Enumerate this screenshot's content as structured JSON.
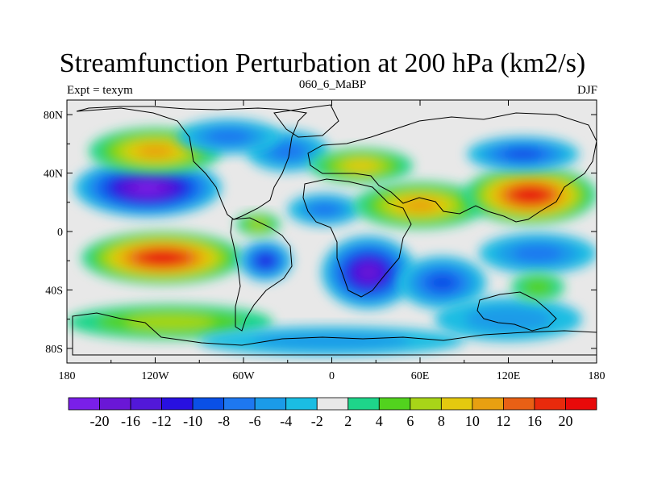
{
  "title": "Streamfunction Perturbation at 200 hPa (km2/s)",
  "left_label": "Expt = texym",
  "center_label": "060_6_MaBP",
  "right_label": "DJF",
  "lat_ticks": [
    {
      "label": "80N",
      "lat": 80
    },
    {
      "label": "40N",
      "lat": 40
    },
    {
      "label": "0",
      "lat": 0
    },
    {
      "label": "40S",
      "lat": -40
    },
    {
      "label": "80S",
      "lat": -80
    }
  ],
  "lon_ticks": [
    {
      "label": "180",
      "lon": -180
    },
    {
      "label": "120W",
      "lon": -120
    },
    {
      "label": "60W",
      "lon": -60
    },
    {
      "label": "0",
      "lon": 0
    },
    {
      "label": "60E",
      "lon": 60
    },
    {
      "label": "120E",
      "lon": 120
    },
    {
      "label": "180",
      "lon": 180
    }
  ],
  "colorbar": {
    "colors": [
      "#7a1fe8",
      "#6a17d6",
      "#5218d9",
      "#2810e0",
      "#0a50e6",
      "#1e78f0",
      "#1b9be8",
      "#1bbde3",
      "#e8e8e8",
      "#1ed58a",
      "#52d31e",
      "#a8d518",
      "#e4c90f",
      "#e8a011",
      "#e86015",
      "#e82a0c",
      "#e80a0a"
    ],
    "labels": [
      "-20",
      "-16",
      "-12",
      "-10",
      "-8",
      "-6",
      "-4",
      "-2",
      "2",
      "4",
      "6",
      "8",
      "10",
      "12",
      "16",
      "20"
    ]
  },
  "map_blobs": [
    {
      "lon": -125,
      "lat": 30,
      "rx": 50,
      "ry": 20,
      "value": -20
    },
    {
      "lon": -120,
      "lat": 55,
      "rx": 45,
      "ry": 16,
      "value": 10
    },
    {
      "lon": -115,
      "lat": -18,
      "rx": 55,
      "ry": 18,
      "value": 20
    },
    {
      "lon": -30,
      "lat": 55,
      "rx": 28,
      "ry": 14,
      "value": -6
    },
    {
      "lon": -70,
      "lat": 65,
      "rx": 35,
      "ry": 12,
      "value": -6
    },
    {
      "lon": -45,
      "lat": -20,
      "rx": 18,
      "ry": 14,
      "value": -10
    },
    {
      "lon": 20,
      "lat": 45,
      "rx": 35,
      "ry": 12,
      "value": 8
    },
    {
      "lon": -5,
      "lat": 15,
      "rx": 25,
      "ry": 11,
      "value": -6
    },
    {
      "lon": 25,
      "lat": -28,
      "rx": 32,
      "ry": 25,
      "value": -16
    },
    {
      "lon": 60,
      "lat": 18,
      "rx": 45,
      "ry": 16,
      "value": 10
    },
    {
      "lon": 135,
      "lat": 25,
      "rx": 45,
      "ry": 20,
      "value": 20
    },
    {
      "lon": 130,
      "lat": 53,
      "rx": 38,
      "ry": 12,
      "value": -8
    },
    {
      "lon": 75,
      "lat": -35,
      "rx": 30,
      "ry": 18,
      "value": -8
    },
    {
      "lon": 140,
      "lat": -15,
      "rx": 40,
      "ry": 14,
      "value": -6
    },
    {
      "lon": 120,
      "lat": -60,
      "rx": 50,
      "ry": 15,
      "value": -4
    },
    {
      "lon": -110,
      "lat": -62,
      "rx": 70,
      "ry": 12,
      "value": 6
    },
    {
      "lon": 0,
      "lat": -75,
      "rx": 90,
      "ry": 10,
      "value": -4
    },
    {
      "lon": 140,
      "lat": -38,
      "rx": 18,
      "ry": 10,
      "value": 4
    },
    {
      "lon": -50,
      "lat": 5,
      "rx": 15,
      "ry": 8,
      "value": 6
    }
  ]
}
